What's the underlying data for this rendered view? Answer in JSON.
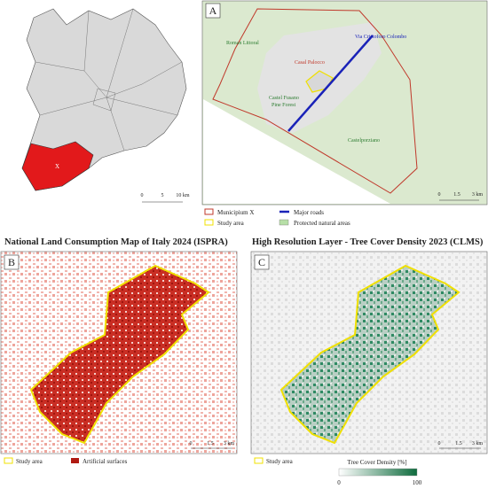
{
  "inset_map": {
    "municipium_label": "X",
    "scale": [
      "0",
      "5",
      "10 km"
    ]
  },
  "panel_a": {
    "label": "A",
    "places": {
      "roman_littoral": "Roman Littoral",
      "road": "Via Cristoforo Colombo",
      "casal_palocco": "Casal Palocco",
      "pine_forest": [
        "Castel Fusano",
        "Pine Forest"
      ],
      "castelporziano": "Castelporziano"
    },
    "scale": [
      "0",
      "1.5",
      "3 km"
    ],
    "legend": [
      "Municipium X",
      "Study area",
      "Major roads",
      "Protected natural areas"
    ]
  },
  "panel_b": {
    "title": "National Land Consumption Map of Italy 2024 (ISPRA)",
    "label": "B",
    "scale": [
      "0",
      "1.5",
      "3 km"
    ],
    "legend": [
      "Study area",
      "Artificial surfaces"
    ]
  },
  "panel_c": {
    "title": "High Resolution Layer - Tree Cover Density 2023 (CLMS)",
    "label": "C",
    "scale": [
      "0",
      "1.5",
      "3 km"
    ],
    "legend": [
      "Study area"
    ],
    "colorbar": {
      "title": "Tree Cover Density [%]",
      "min": 0,
      "max": 100
    }
  }
}
